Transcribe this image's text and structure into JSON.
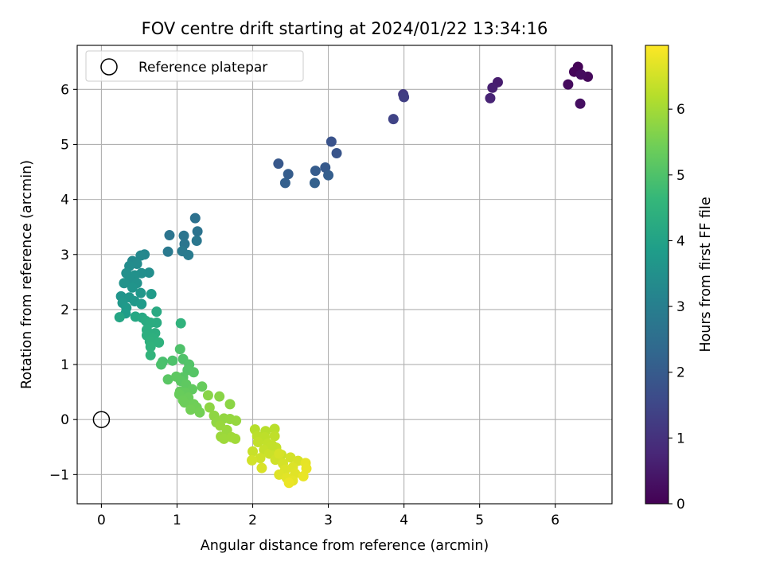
{
  "chart_data": {
    "type": "scatter",
    "title": "FOV centre drift starting at 2024/01/22 13:34:16",
    "xlabel": "Angular distance from reference (arcmin)",
    "ylabel": "Rotation from reference (arcmin)",
    "xlim": [
      -0.32,
      6.75
    ],
    "ylim": [
      -1.53,
      6.8
    ],
    "xticks": [
      0,
      1,
      2,
      3,
      4,
      5,
      6
    ],
    "yticks": [
      -1,
      0,
      1,
      2,
      3,
      4,
      5,
      6
    ],
    "grid": true,
    "legend": {
      "position": "top-left",
      "entries": [
        "Reference platepar"
      ]
    },
    "reference_point": {
      "label": "Reference platepar",
      "x": 0,
      "y": 0,
      "marker": "hollow-circle"
    },
    "colorbar": {
      "label": "Hours from first FF file",
      "range": [
        0,
        6.97
      ],
      "ticks": [
        0,
        1,
        2,
        3,
        4,
        5,
        6
      ],
      "colormap": "viridis"
    },
    "colormap_stops": [
      "#440154",
      "#482878",
      "#3e4989",
      "#31688e",
      "#26828e",
      "#1f9e89",
      "#35b779",
      "#6ece58",
      "#b5de2b",
      "#fde725"
    ],
    "series": [
      {
        "points": [
          [
            6.3,
            6.41,
            0.05
          ],
          [
            6.25,
            6.32,
            0.1
          ],
          [
            6.43,
            6.23,
            0.15
          ],
          [
            6.17,
            6.09,
            0.2
          ],
          [
            6.34,
            6.27,
            0.22
          ],
          [
            6.33,
            5.74,
            0.28
          ],
          [
            5.24,
            6.13,
            0.55
          ],
          [
            5.17,
            6.03,
            0.62
          ],
          [
            5.14,
            5.84,
            0.7
          ],
          [
            3.99,
            5.91,
            1.2
          ],
          [
            4.0,
            5.86,
            1.28
          ],
          [
            3.86,
            5.46,
            1.4
          ],
          [
            3.04,
            5.05,
            1.8
          ],
          [
            3.11,
            4.84,
            1.86
          ],
          [
            2.34,
            4.65,
            1.92
          ],
          [
            2.96,
            4.58,
            1.98
          ],
          [
            2.83,
            4.52,
            2.02
          ],
          [
            2.47,
            4.46,
            2.05
          ],
          [
            3.0,
            4.44,
            2.1
          ],
          [
            2.43,
            4.3,
            2.12
          ],
          [
            2.82,
            4.3,
            2.15
          ],
          [
            1.24,
            3.66,
            2.6
          ],
          [
            1.27,
            3.42,
            2.65
          ],
          [
            0.9,
            3.35,
            2.68
          ],
          [
            1.09,
            3.34,
            2.7
          ],
          [
            1.1,
            3.19,
            2.75
          ],
          [
            1.26,
            3.25,
            2.78
          ],
          [
            0.88,
            3.05,
            2.82
          ],
          [
            1.07,
            3.06,
            2.85
          ],
          [
            1.15,
            2.99,
            2.88
          ],
          [
            0.57,
            3.0,
            3.2
          ],
          [
            0.52,
            2.98,
            3.25
          ],
          [
            0.41,
            2.88,
            3.3
          ],
          [
            0.47,
            2.83,
            3.35
          ],
          [
            0.37,
            2.79,
            3.38
          ],
          [
            0.63,
            2.67,
            3.42
          ],
          [
            0.53,
            2.66,
            3.45
          ],
          [
            0.33,
            2.66,
            3.48
          ],
          [
            0.44,
            2.62,
            3.5
          ],
          [
            0.38,
            2.55,
            3.52
          ],
          [
            0.47,
            2.48,
            3.55
          ],
          [
            0.3,
            2.48,
            3.57
          ],
          [
            0.41,
            2.4,
            3.6
          ],
          [
            0.26,
            2.24,
            3.62
          ],
          [
            0.37,
            2.22,
            3.65
          ],
          [
            0.52,
            2.3,
            3.67
          ],
          [
            0.28,
            2.12,
            3.7
          ],
          [
            0.44,
            2.15,
            3.72
          ],
          [
            0.33,
            2.03,
            3.75
          ],
          [
            0.53,
            2.1,
            3.78
          ],
          [
            0.66,
            2.28,
            3.8
          ],
          [
            0.32,
            1.93,
            3.83
          ],
          [
            0.24,
            1.86,
            4.1
          ],
          [
            0.45,
            1.87,
            4.15
          ],
          [
            0.54,
            1.85,
            4.18
          ],
          [
            0.73,
            1.96,
            4.22
          ],
          [
            0.59,
            1.79,
            4.25
          ],
          [
            0.73,
            1.76,
            4.28
          ],
          [
            0.65,
            1.76,
            4.3
          ],
          [
            0.6,
            1.63,
            4.33
          ],
          [
            0.71,
            1.57,
            4.35
          ],
          [
            0.6,
            1.53,
            4.38
          ],
          [
            0.68,
            1.48,
            4.4
          ],
          [
            0.64,
            1.42,
            4.43
          ],
          [
            0.76,
            1.4,
            4.45
          ],
          [
            0.65,
            1.32,
            4.48
          ],
          [
            1.05,
            1.75,
            4.5
          ],
          [
            0.65,
            1.17,
            4.53
          ],
          [
            0.81,
            1.05,
            4.9
          ],
          [
            0.79,
            1.0,
            4.95
          ],
          [
            0.94,
            1.07,
            4.98
          ],
          [
            1.04,
            1.28,
            5.0
          ],
          [
            1.08,
            1.1,
            5.03
          ],
          [
            1.16,
            1.0,
            5.05
          ],
          [
            1.14,
            0.9,
            5.08
          ],
          [
            1.22,
            0.86,
            5.1
          ],
          [
            1.08,
            0.77,
            5.12
          ],
          [
            0.88,
            0.73,
            5.15
          ],
          [
            1.05,
            0.7,
            5.17
          ],
          [
            0.99,
            0.78,
            5.2
          ],
          [
            1.12,
            0.64,
            5.22
          ],
          [
            1.2,
            0.55,
            5.25
          ],
          [
            1.04,
            0.51,
            5.27
          ],
          [
            1.11,
            0.49,
            5.3
          ],
          [
            1.33,
            0.6,
            5.32
          ],
          [
            1.03,
            0.46,
            5.34
          ],
          [
            1.15,
            0.4,
            5.36
          ],
          [
            1.08,
            0.35,
            5.38
          ],
          [
            1.1,
            0.31,
            5.4
          ],
          [
            1.22,
            0.28,
            5.42
          ],
          [
            1.26,
            0.22,
            5.44
          ],
          [
            1.18,
            0.18,
            5.46
          ],
          [
            1.3,
            0.13,
            5.48
          ],
          [
            1.41,
            0.44,
            5.7
          ],
          [
            1.56,
            0.42,
            5.72
          ],
          [
            1.7,
            0.28,
            5.74
          ],
          [
            1.43,
            0.22,
            5.76
          ],
          [
            1.49,
            0.07,
            5.78
          ],
          [
            1.52,
            -0.05,
            5.8
          ],
          [
            1.62,
            0.02,
            5.82
          ],
          [
            1.7,
            0.01,
            5.84
          ],
          [
            1.78,
            -0.02,
            5.86
          ],
          [
            1.57,
            -0.11,
            5.88
          ],
          [
            1.66,
            -0.19,
            5.9
          ],
          [
            1.58,
            -0.31,
            5.92
          ],
          [
            1.62,
            -0.35,
            5.94
          ],
          [
            1.72,
            -0.32,
            5.96
          ],
          [
            1.77,
            -0.35,
            5.98
          ],
          [
            2.03,
            -0.18,
            6.2
          ],
          [
            2.17,
            -0.21,
            6.22
          ],
          [
            2.29,
            -0.17,
            6.24
          ],
          [
            2.06,
            -0.3,
            6.26
          ],
          [
            2.16,
            -0.32,
            6.28
          ],
          [
            2.29,
            -0.3,
            6.3
          ],
          [
            2.07,
            -0.41,
            6.32
          ],
          [
            2.2,
            -0.44,
            6.34
          ],
          [
            2.31,
            -0.51,
            6.36
          ],
          [
            2.15,
            -0.55,
            6.38
          ],
          [
            2.0,
            -0.58,
            6.4
          ],
          [
            2.22,
            -0.62,
            6.42
          ],
          [
            2.38,
            -0.64,
            6.44
          ],
          [
            2.1,
            -0.7,
            6.46
          ],
          [
            2.3,
            -0.73,
            6.48
          ],
          [
            1.99,
            -0.74,
            6.5
          ],
          [
            2.5,
            -0.69,
            6.52
          ],
          [
            2.4,
            -0.8,
            6.54
          ],
          [
            2.6,
            -0.75,
            6.56
          ],
          [
            2.12,
            -0.88,
            6.58
          ],
          [
            2.43,
            -0.91,
            6.6
          ],
          [
            2.53,
            -0.87,
            6.62
          ],
          [
            2.35,
            -1.0,
            6.64
          ],
          [
            2.56,
            -0.98,
            6.66
          ],
          [
            2.45,
            -1.06,
            6.68
          ],
          [
            2.53,
            -1.11,
            6.7
          ],
          [
            2.7,
            -0.79,
            6.72
          ],
          [
            2.71,
            -0.89,
            6.74
          ],
          [
            2.67,
            -1.03,
            6.76
          ],
          [
            2.48,
            -1.15,
            6.78
          ],
          [
            2.35,
            -0.62,
            6.55
          ],
          [
            2.26,
            -0.47,
            6.35
          ]
        ]
      }
    ]
  }
}
